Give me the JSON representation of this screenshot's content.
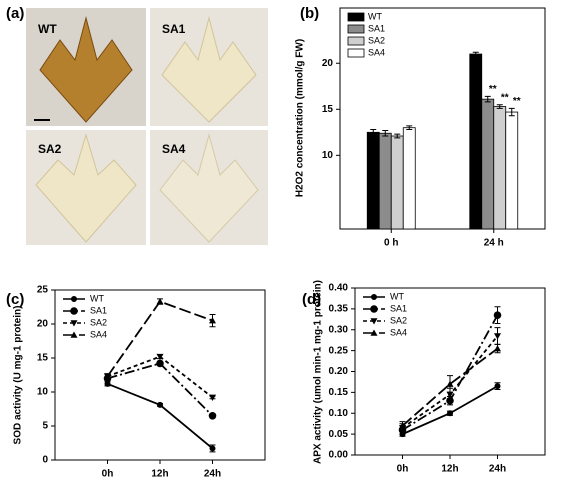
{
  "photo_panel": {
    "label": "(a)",
    "tiles": [
      "WT",
      "SA1",
      "SA2",
      "SA4"
    ]
  },
  "chart_data": [
    {
      "type": "bar",
      "panel": "(b)",
      "ylabel": "H2O2 concentration (mmol/g FW)",
      "categories": [
        "0 h",
        "24 h"
      ],
      "ylim": [
        2,
        26
      ],
      "yticks": [
        10,
        15,
        20
      ],
      "legend": "upper-left",
      "series": [
        {
          "name": "WT",
          "color": "#000000",
          "values": [
            12.5,
            21.0
          ],
          "errors": [
            0.3,
            0.2
          ]
        },
        {
          "name": "SA1",
          "color": "#8c8c8c",
          "values": [
            12.4,
            16.1
          ],
          "errors": [
            0.3,
            0.3
          ],
          "marks": [
            null,
            "**"
          ]
        },
        {
          "name": "SA2",
          "color": "#cfcfcf",
          "values": [
            12.1,
            15.3
          ],
          "errors": [
            0.2,
            0.2
          ],
          "marks": [
            null,
            "**"
          ]
        },
        {
          "name": "SA4",
          "color": "#ffffff",
          "values": [
            13.0,
            14.7
          ],
          "errors": [
            0.2,
            0.4
          ],
          "marks": [
            null,
            "**"
          ]
        }
      ]
    },
    {
      "type": "line",
      "panel": "(c)",
      "ylabel": "SOD activity (U mg-1 protein)",
      "categories": [
        "0h",
        "12h",
        "24h"
      ],
      "ylim": [
        0,
        25
      ],
      "yticks": [
        0,
        5,
        10,
        15,
        20,
        25
      ],
      "legend": "upper-left",
      "series": [
        {
          "name": "WT",
          "color": "#000000",
          "dash": "none",
          "marker": "circle",
          "values": [
            11.2,
            8.1,
            1.7
          ],
          "errors": [
            0.3,
            0.2,
            0.5
          ]
        },
        {
          "name": "SA1",
          "color": "#000000",
          "dash": "10 3 2 3",
          "marker": "hexagon",
          "values": [
            12.0,
            14.2,
            6.5
          ],
          "errors": [
            0.3,
            0.3,
            0.3
          ]
        },
        {
          "name": "SA2",
          "color": "#000000",
          "dash": "4 3",
          "marker": "triangle-down",
          "values": [
            12.3,
            15.2,
            9.2
          ],
          "errors": [
            0.3,
            0.3,
            0.2
          ]
        },
        {
          "name": "SA4",
          "color": "#000000",
          "dash": "12 4",
          "marker": "triangle-up",
          "values": [
            12.3,
            23.3,
            20.5
          ],
          "errors": [
            0.4,
            0.4,
            0.9
          ]
        }
      ]
    },
    {
      "type": "line",
      "panel": "(d)",
      "ylabel": "APX activity (umol min-1 mg-1 protein)",
      "categories": [
        "0h",
        "12h",
        "24h"
      ],
      "ylim": [
        0,
        0.4
      ],
      "yticks": [
        {
          "value": 0,
          "label": "0.00"
        },
        {
          "value": 0.05,
          "label": "0.05"
        },
        {
          "value": 0.1,
          "label": "0.10"
        },
        {
          "value": 0.15,
          "label": "0.15"
        },
        {
          "value": 0.2,
          "label": "0.20"
        },
        {
          "value": 0.25,
          "label": "0.25"
        },
        {
          "value": 0.3,
          "label": "0.30"
        },
        {
          "value": 0.35,
          "label": "0.35"
        },
        {
          "value": 0.4,
          "label": "0.40"
        }
      ],
      "legend": "upper-left",
      "series": [
        {
          "name": "WT",
          "color": "#000000",
          "dash": "none",
          "marker": "circle",
          "values": [
            0.05,
            0.1,
            0.165
          ],
          "errors": [
            0.005,
            0.005,
            0.008
          ]
        },
        {
          "name": "SA1",
          "color": "#000000",
          "dash": "10 3 2 3",
          "marker": "hexagon",
          "values": [
            0.06,
            0.13,
            0.335
          ],
          "errors": [
            0.01,
            0.01,
            0.02
          ]
        },
        {
          "name": "SA2",
          "color": "#000000",
          "dash": "4 3",
          "marker": "triangle-down",
          "values": [
            0.065,
            0.145,
            0.285
          ],
          "errors": [
            0.01,
            0.015,
            0.02
          ]
        },
        {
          "name": "SA4",
          "color": "#000000",
          "dash": "12 4",
          "marker": "triangle-up",
          "values": [
            0.07,
            0.17,
            0.255
          ],
          "errors": [
            0.01,
            0.02,
            0.01
          ]
        }
      ]
    }
  ]
}
